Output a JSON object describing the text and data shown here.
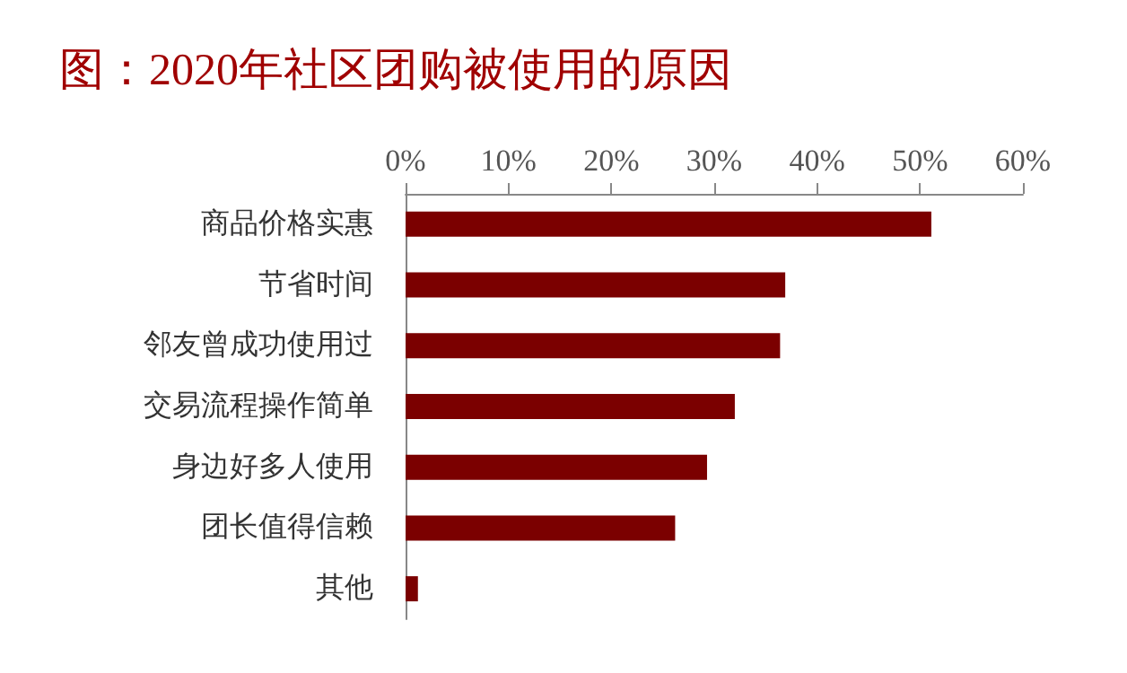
{
  "chart_data": {
    "type": "bar",
    "orientation": "horizontal",
    "title": "图：2020年社区团购被使用的原因",
    "categories": [
      "商品价格实惠",
      "节省时间",
      "邻友曾成功使用过",
      "交易流程操作简单",
      "身边好多人使用",
      "团长值得信赖",
      "其他"
    ],
    "values": [
      51.1,
      36.9,
      36.4,
      32.0,
      29.3,
      26.2,
      1.2
    ],
    "color": "#7b0000",
    "xlim": [
      0,
      60
    ],
    "xticks": [
      {
        "value": 0,
        "label": "0%"
      },
      {
        "value": 10,
        "label": "10%"
      },
      {
        "value": 20,
        "label": "20%"
      },
      {
        "value": 30,
        "label": "30%"
      },
      {
        "value": 40,
        "label": "40%"
      },
      {
        "value": 50,
        "label": "50%"
      },
      {
        "value": 60,
        "label": "60%"
      }
    ],
    "grid": false
  }
}
